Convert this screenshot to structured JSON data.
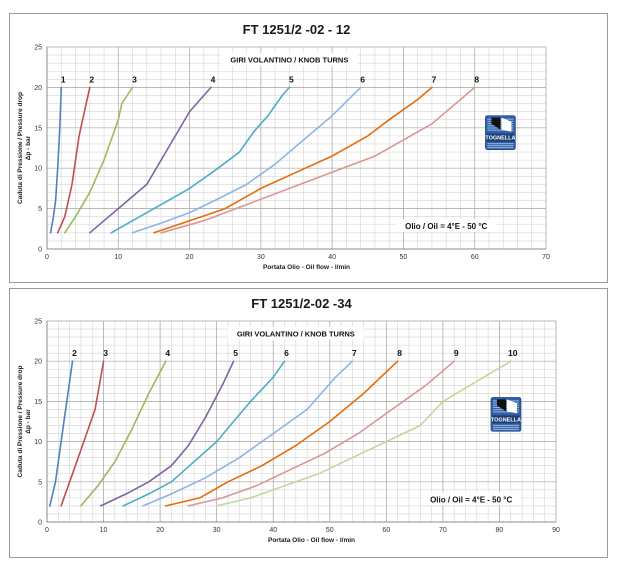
{
  "chart_data": [
    {
      "type": "line",
      "title": "FT 1251/2 -02 - 12",
      "xlabel": "Portata Olio - Oil flow -  l/min",
      "ylabel": [
        "Caduta di Pressione / Pressure drop",
        "Δp - bar"
      ],
      "xlim": [
        0,
        70
      ],
      "ylim": [
        0,
        25
      ],
      "xticks": [
        0,
        10,
        20,
        30,
        40,
        50,
        60,
        70
      ],
      "yticks": [
        0,
        5,
        10,
        15,
        20,
        25
      ],
      "grid": true,
      "legend_title": "GIRI VOLANTINO / KNOB TURNS",
      "note": "Olio / Oil = 4°E - 50 °C",
      "logo_text": "TOGNELLA",
      "series": [
        {
          "name": "1",
          "color": "#4f81bd",
          "points": [
            [
              0.5,
              2
            ],
            [
              0.9,
              4
            ],
            [
              1.2,
              6
            ],
            [
              1.5,
              10
            ],
            [
              1.8,
              15
            ],
            [
              2,
              20
            ]
          ]
        },
        {
          "name": "2",
          "color": "#c0504d",
          "points": [
            [
              1.5,
              2
            ],
            [
              2.5,
              4
            ],
            [
              3.5,
              8
            ],
            [
              4.5,
              14
            ],
            [
              5.5,
              18
            ],
            [
              6,
              20
            ]
          ]
        },
        {
          "name": "3",
          "color": "#9bbb59",
          "points": [
            [
              2.5,
              2
            ],
            [
              4,
              4
            ],
            [
              6,
              7
            ],
            [
              8,
              11
            ],
            [
              10,
              16
            ],
            [
              10.5,
              18
            ],
            [
              12,
              20
            ]
          ]
        },
        {
          "name": "4",
          "color": "#8064a2",
          "points": [
            [
              6,
              2
            ],
            [
              8,
              3.5
            ],
            [
              10,
              5
            ],
            [
              12,
              6.5
            ],
            [
              14,
              8
            ],
            [
              16,
              11
            ],
            [
              18,
              14
            ],
            [
              20,
              17
            ],
            [
              23,
              20
            ]
          ]
        },
        {
          "name": "5",
          "color": "#4bacc6",
          "points": [
            [
              9,
              2
            ],
            [
              12,
              3.5
            ],
            [
              16,
              5.5
            ],
            [
              20,
              7.5
            ],
            [
              24,
              10
            ],
            [
              27,
              12
            ],
            [
              29,
              14.5
            ],
            [
              31,
              16.5
            ],
            [
              33,
              19
            ],
            [
              34,
              20
            ]
          ]
        },
        {
          "name": "6",
          "color": "#8eb4e3",
          "points": [
            [
              12,
              2
            ],
            [
              16,
              3.2
            ],
            [
              20,
              4.5
            ],
            [
              24,
              6.2
            ],
            [
              28,
              8
            ],
            [
              32,
              10.5
            ],
            [
              36,
              13.5
            ],
            [
              40,
              16.5
            ],
            [
              44,
              20
            ]
          ]
        },
        {
          "name": "7",
          "color": "#e46c0a",
          "points": [
            [
              15,
              2
            ],
            [
              20,
              3.5
            ],
            [
              25,
              5
            ],
            [
              30,
              7.5
            ],
            [
              35,
              9.5
            ],
            [
              40,
              11.5
            ],
            [
              45,
              14
            ],
            [
              48,
              16
            ],
            [
              52,
              18.5
            ],
            [
              54,
              20
            ]
          ]
        },
        {
          "name": "8",
          "color": "#d99694",
          "points": [
            [
              16,
              2
            ],
            [
              22,
              3.5
            ],
            [
              28,
              5.5
            ],
            [
              34,
              7.5
            ],
            [
              40,
              9.5
            ],
            [
              46,
              11.5
            ],
            [
              50,
              13.5
            ],
            [
              54,
              15.5
            ],
            [
              58,
              18.5
            ],
            [
              60,
              20
            ]
          ]
        }
      ]
    },
    {
      "type": "line",
      "title": "FT 1251/2-02 -34",
      "xlabel": "Portata Olio - Oil flow -  l/min",
      "ylabel": [
        "Caduta di Pressione / Pressure drop",
        "Δp - bar"
      ],
      "xlim": [
        0,
        90
      ],
      "ylim": [
        0,
        25
      ],
      "xticks": [
        0,
        10,
        20,
        30,
        40,
        50,
        60,
        70,
        80,
        90
      ],
      "yticks": [
        0,
        5,
        10,
        15,
        20,
        25
      ],
      "grid": true,
      "legend_title": "GIRI VOLANTINO / KNOB TURNS",
      "note": "Olio / Oil = 4°E - 50 °C",
      "logo_text": "TOGNELLA",
      "series": [
        {
          "name": "2",
          "color": "#4f81bd",
          "points": [
            [
              0.5,
              2
            ],
            [
              1.5,
              5
            ],
            [
              2.5,
              10
            ],
            [
              3.5,
              15
            ],
            [
              4.5,
              20
            ]
          ]
        },
        {
          "name": "3",
          "color": "#c0504d",
          "points": [
            [
              2.5,
              2
            ],
            [
              4.5,
              6
            ],
            [
              6.5,
              10
            ],
            [
              8.5,
              14
            ],
            [
              10,
              20
            ]
          ]
        },
        {
          "name": "4",
          "color": "#9bbb59",
          "points": [
            [
              6,
              2
            ],
            [
              9,
              4.5
            ],
            [
              12,
              7.5
            ],
            [
              15,
              11.5
            ],
            [
              18,
              16
            ],
            [
              21,
              20
            ]
          ]
        },
        {
          "name": "5",
          "color": "#8064a2",
          "points": [
            [
              9.5,
              2
            ],
            [
              14,
              3.5
            ],
            [
              18,
              5
            ],
            [
              22,
              7
            ],
            [
              25,
              9.5
            ],
            [
              28,
              13
            ],
            [
              31,
              17
            ],
            [
              33,
              20
            ]
          ]
        },
        {
          "name": "6",
          "color": "#4bacc6",
          "points": [
            [
              13.5,
              2
            ],
            [
              18,
              3.5
            ],
            [
              22,
              5
            ],
            [
              26,
              7.5
            ],
            [
              30,
              10
            ],
            [
              33,
              12.5
            ],
            [
              36,
              15
            ],
            [
              40,
              18
            ],
            [
              42,
              20
            ]
          ]
        },
        {
          "name": "7",
          "color": "#8eb4e3",
          "points": [
            [
              17,
              2
            ],
            [
              22,
              3.5
            ],
            [
              28,
              5.5
            ],
            [
              34,
              8
            ],
            [
              40,
              11
            ],
            [
              46,
              14
            ],
            [
              51,
              18
            ],
            [
              54,
              20
            ]
          ]
        },
        {
          "name": "8",
          "color": "#e46c0a",
          "points": [
            [
              21,
              2
            ],
            [
              27,
              3
            ],
            [
              32,
              5
            ],
            [
              38,
              7
            ],
            [
              44,
              9.5
            ],
            [
              50,
              12.5
            ],
            [
              56,
              16
            ],
            [
              62,
              20
            ]
          ]
        },
        {
          "name": "9",
          "color": "#d99694",
          "points": [
            [
              25,
              2
            ],
            [
              31,
              3
            ],
            [
              37,
              4.5
            ],
            [
              43,
              6.5
            ],
            [
              49,
              8.5
            ],
            [
              55,
              11
            ],
            [
              61,
              14
            ],
            [
              67,
              17
            ],
            [
              72,
              20
            ]
          ]
        },
        {
          "name": "10",
          "color": "#c3d69b",
          "points": [
            [
              30,
              2
            ],
            [
              36,
              3
            ],
            [
              42,
              4.5
            ],
            [
              48,
              6
            ],
            [
              54,
              8
            ],
            [
              60,
              10
            ],
            [
              66,
              12
            ],
            [
              70,
              15
            ],
            [
              76,
              17.5
            ],
            [
              82,
              20
            ]
          ]
        }
      ]
    }
  ]
}
